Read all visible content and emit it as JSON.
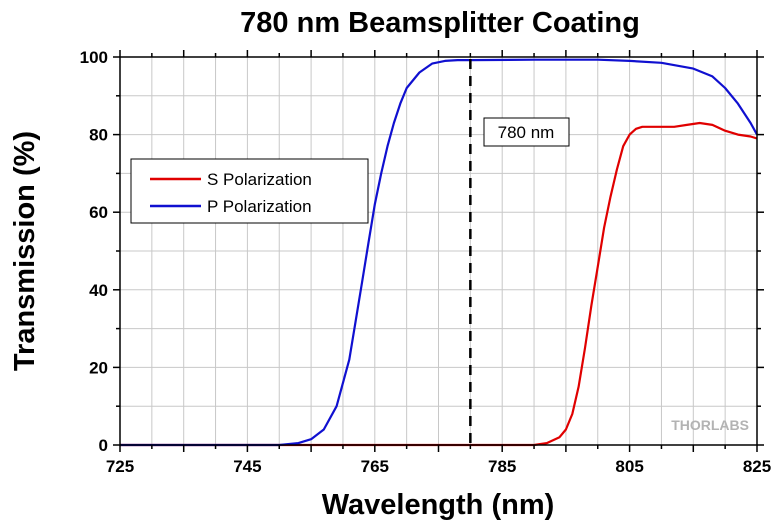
{
  "chart_data": {
    "type": "line",
    "title": "780 nm Beamsplitter Coating",
    "xlabel": "Wavelength (nm)",
    "ylabel": "Transmission (%)",
    "xlim": [
      725,
      825
    ],
    "ylim": [
      0,
      100
    ],
    "xticks": [
      "725",
      "745",
      "765",
      "785",
      "805",
      "825"
    ],
    "yticks": [
      "0",
      "20",
      "40",
      "60",
      "80",
      "100"
    ],
    "grid": true,
    "legend_position": "center-left",
    "colors": {
      "s": "#e00000",
      "p": "#1010d0",
      "marker": "#000000"
    },
    "series": [
      {
        "name": "S Polarization",
        "color": "#e00000",
        "x": [
          725,
          790,
          792,
          794,
          795,
          796,
          797,
          798,
          799,
          800,
          801,
          802,
          803,
          804,
          805,
          806,
          807,
          808,
          809,
          810,
          812,
          814,
          816,
          818,
          820,
          822,
          824,
          825
        ],
        "y": [
          0,
          0,
          0.5,
          2,
          4,
          8,
          15,
          25,
          36,
          46,
          56,
          64,
          71,
          77,
          80,
          81.5,
          82,
          82,
          82,
          82,
          82,
          82.5,
          83,
          82.5,
          81,
          80,
          79.5,
          79
        ]
      },
      {
        "name": "P Polarization",
        "color": "#1010d0",
        "x": [
          725,
          750,
          753,
          755,
          757,
          759,
          761,
          762,
          763,
          764,
          765,
          766,
          767,
          768,
          769,
          770,
          772,
          774,
          776,
          778,
          780,
          790,
          800,
          805,
          810,
          815,
          818,
          820,
          822,
          824,
          825
        ],
        "y": [
          0,
          0,
          0.5,
          1.5,
          4,
          10,
          22,
          32,
          42,
          52,
          62,
          70,
          77,
          83,
          88,
          92,
          96,
          98.3,
          99,
          99.2,
          99.2,
          99.3,
          99.3,
          99,
          98.5,
          97,
          95,
          92,
          88,
          83,
          80
        ]
      }
    ],
    "annotations": [
      {
        "x": 780,
        "text": "780 nm",
        "style": "dashed-vertical-line"
      }
    ],
    "watermark": "THORLABS"
  }
}
